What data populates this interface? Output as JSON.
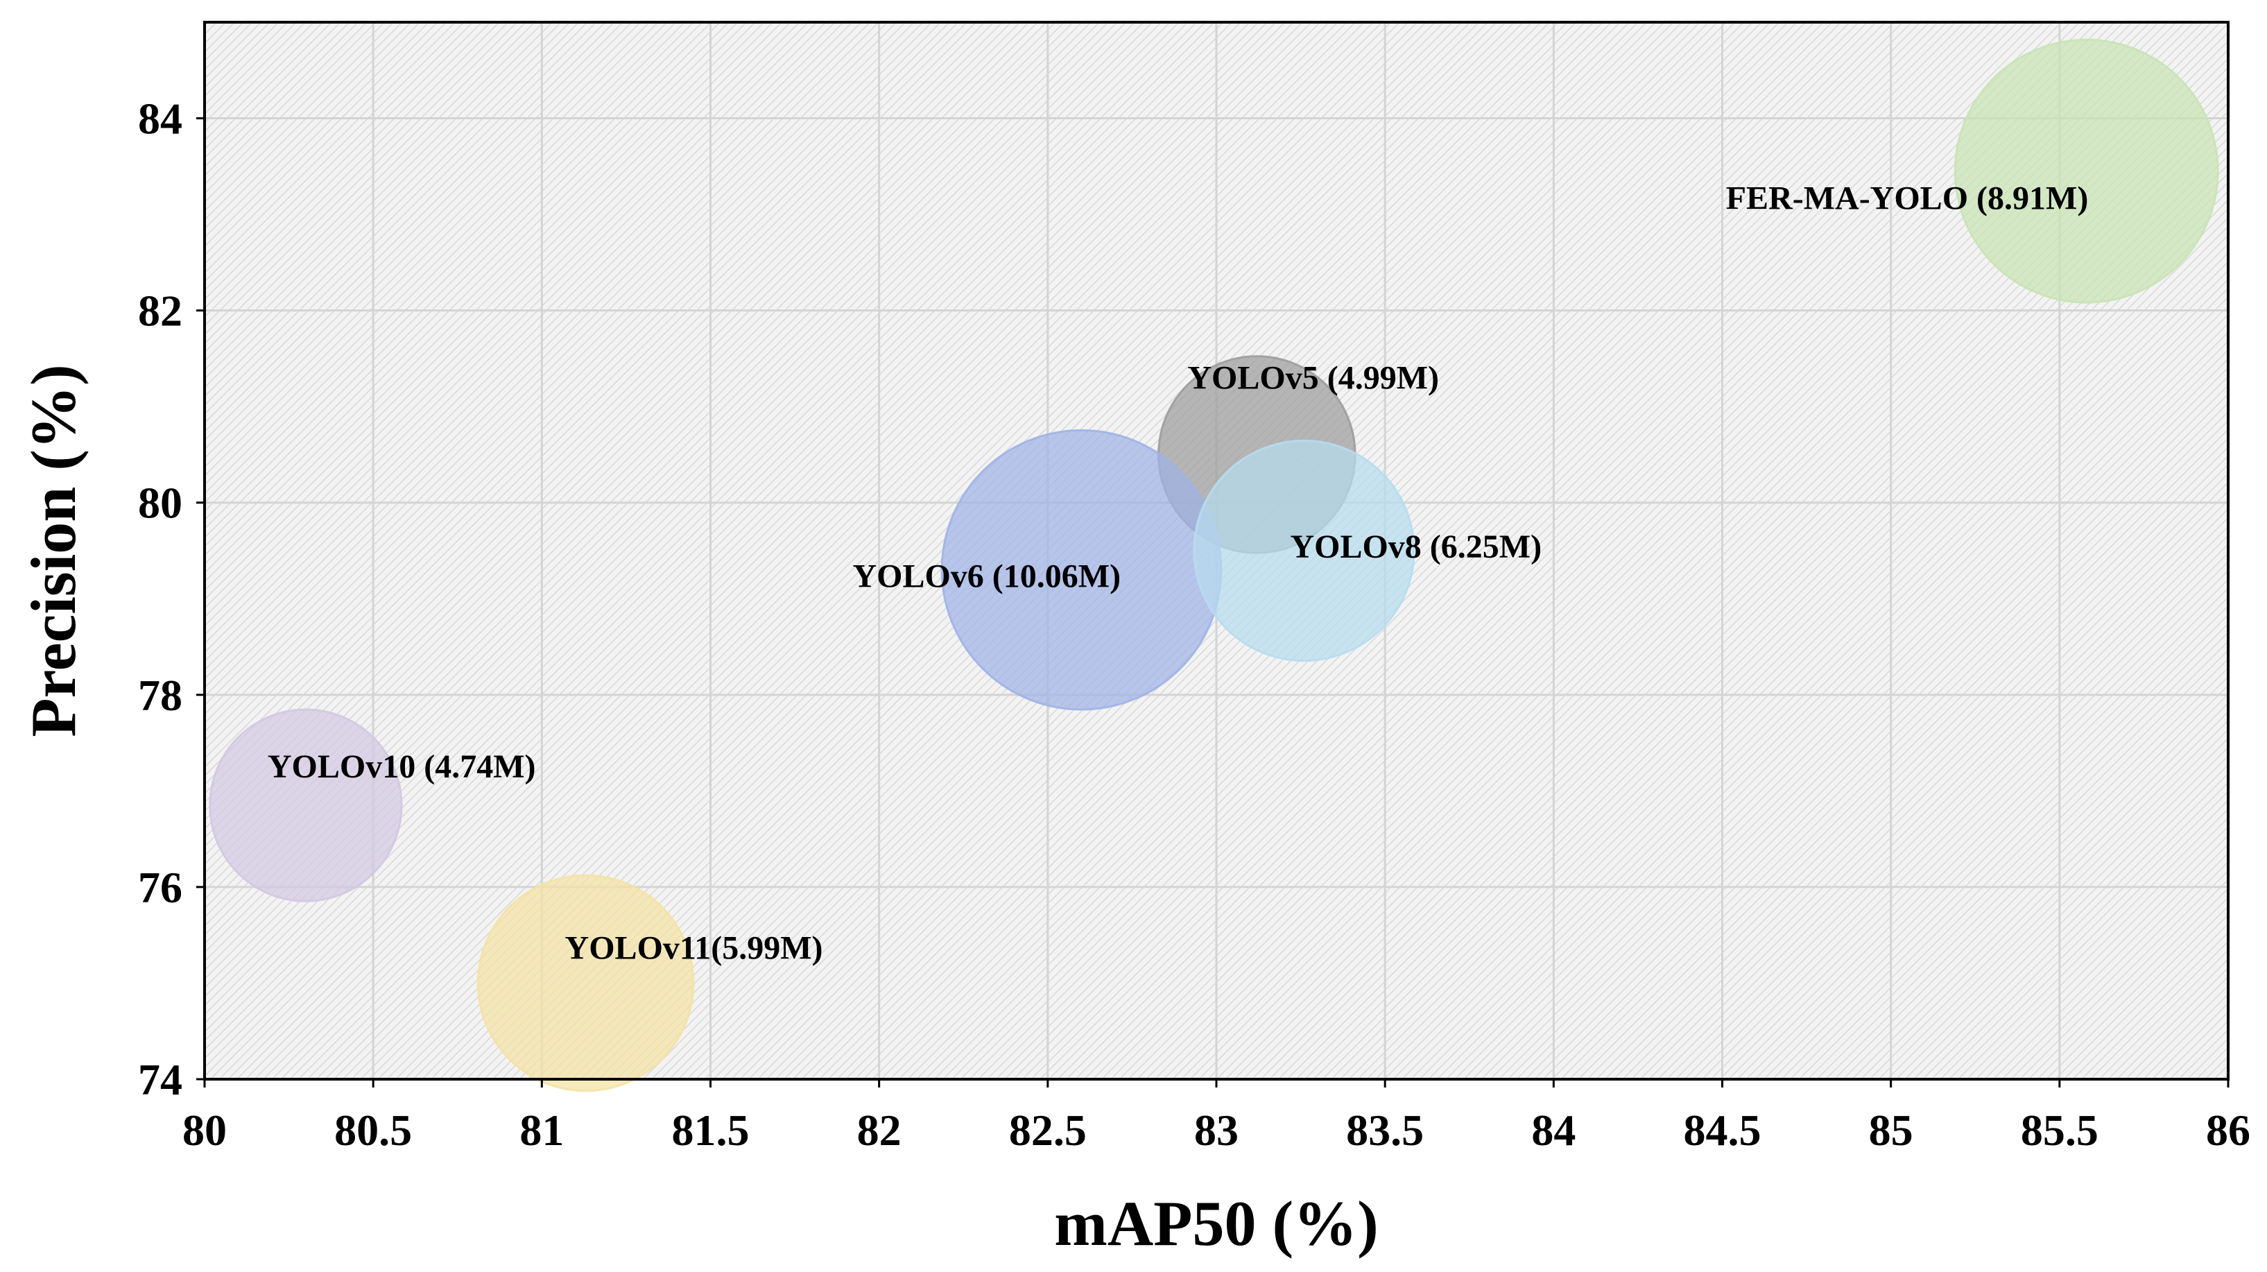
{
  "chart_data": {
    "type": "scatter",
    "subtype": "bubble",
    "title": "",
    "xlabel": "mAP50 (%)",
    "ylabel": "Precision (%)",
    "xlim": [
      80,
      86
    ],
    "ylim": [
      74,
      85
    ],
    "x_ticks": [
      "80",
      "80.5",
      "81",
      "81.5",
      "82",
      "82.5",
      "83",
      "83.5",
      "84",
      "84.5",
      "85",
      "85.5",
      "86"
    ],
    "y_ticks": [
      "74",
      "76",
      "78",
      "80",
      "82",
      "84"
    ],
    "grid": true,
    "series": [
      {
        "name": "YOLOv5",
        "label": "YOLOv5 (4.99M)",
        "x": 83.12,
        "y": 80.5,
        "params_m": 4.99,
        "color": "#9c9c9c"
      },
      {
        "name": "YOLOv6",
        "label": "YOLOv6 (10.06M)",
        "x": 82.6,
        "y": 79.3,
        "params_m": 10.06,
        "color": "#9fb3e6"
      },
      {
        "name": "YOLOv8",
        "label": "YOLOv8 (6.25M)",
        "x": 83.26,
        "y": 79.5,
        "params_m": 6.25,
        "color": "#b7dcef"
      },
      {
        "name": "YOLOv10",
        "label": "YOLOv10 (4.74M)",
        "x": 80.3,
        "y": 76.85,
        "params_m": 4.74,
        "color": "#d3c8e2"
      },
      {
        "name": "YOLOv11",
        "label": "YOLOv11(5.99M)",
        "x": 81.13,
        "y": 75.0,
        "params_m": 5.99,
        "color": "#f4e2a4"
      },
      {
        "name": "FER-MA-YOLO",
        "label": "FER-MA-YOLO (8.91M)",
        "x": 85.58,
        "y": 83.45,
        "params_m": 8.91,
        "color": "#c8e3b4"
      }
    ]
  }
}
